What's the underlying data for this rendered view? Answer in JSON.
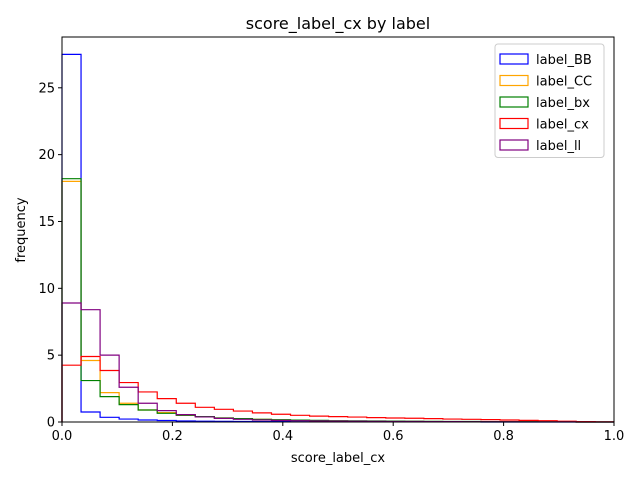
{
  "chart_data": {
    "type": "histogram-step",
    "title": "score_label_cx by label",
    "xlabel": "score_label_cx",
    "ylabel": "frequency",
    "xlim": [
      0,
      1
    ],
    "ylim": [
      0,
      28.8
    ],
    "x_ticks": [
      0,
      0.2,
      0.4,
      0.6,
      0.8,
      1.0
    ],
    "x_tick_labels": [
      "0.0",
      "0.2",
      "0.4",
      "0.6",
      "0.8",
      "1.0"
    ],
    "y_ticks": [
      0,
      5,
      10,
      15,
      20,
      25
    ],
    "y_tick_labels": [
      "0",
      "5",
      "10",
      "15",
      "20",
      "25"
    ],
    "grid": false,
    "legend_position": "top-right",
    "bin_width": 0.0345,
    "series": [
      {
        "name": "label_BB",
        "color": "#0000ff",
        "bin_start": 0,
        "values": [
          27.5,
          0.75,
          0.35,
          0.22,
          0.15,
          0.11,
          0.08,
          0.06,
          0.05,
          0.04,
          0.03,
          0.03,
          0.02,
          0.02,
          0.02,
          0.01,
          0.01,
          0.01,
          0.01,
          0.01,
          0.01,
          0.01,
          0.0,
          0.0,
          0.0,
          0.0,
          0.0,
          0.0,
          0.0
        ]
      },
      {
        "name": "label_CC",
        "color": "#ffa500",
        "bin_start": 0,
        "values": [
          18.0,
          4.6,
          2.2,
          1.4,
          0.9,
          0.7,
          0.5,
          0.4,
          0.3,
          0.25,
          0.2,
          0.15,
          0.12,
          0.1,
          0.08,
          0.07,
          0.06,
          0.05,
          0.04,
          0.03,
          0.03,
          0.02,
          0.02,
          0.02,
          0.01,
          0.01,
          0.01,
          0.0,
          0.0
        ]
      },
      {
        "name": "label_bx",
        "color": "#008000",
        "bin_start": 0,
        "values": [
          18.2,
          3.1,
          1.9,
          1.3,
          0.9,
          0.65,
          0.5,
          0.4,
          0.3,
          0.25,
          0.2,
          0.17,
          0.14,
          0.12,
          0.1,
          0.09,
          0.08,
          0.07,
          0.06,
          0.05,
          0.04,
          0.04,
          0.03,
          0.02,
          0.02,
          0.01,
          0.01,
          0.0,
          0.0
        ]
      },
      {
        "name": "label_cx",
        "color": "#ff0000",
        "bin_start": 0,
        "values": [
          4.25,
          4.9,
          3.85,
          2.95,
          2.25,
          1.75,
          1.4,
          1.1,
          0.95,
          0.82,
          0.68,
          0.58,
          0.5,
          0.44,
          0.4,
          0.37,
          0.33,
          0.3,
          0.28,
          0.25,
          0.22,
          0.2,
          0.18,
          0.15,
          0.12,
          0.1,
          0.06,
          0.03,
          0.01
        ]
      },
      {
        "name": "label_ll",
        "color": "#800080",
        "bin_start": 0,
        "values": [
          8.9,
          8.4,
          5.0,
          2.6,
          1.4,
          0.85,
          0.55,
          0.38,
          0.27,
          0.2,
          0.15,
          0.12,
          0.1,
          0.08,
          0.07,
          0.06,
          0.05,
          0.04,
          0.04,
          0.03,
          0.03,
          0.02,
          0.02,
          0.02,
          0.01,
          0.01,
          0.01,
          0.0,
          0.0
        ]
      }
    ]
  }
}
